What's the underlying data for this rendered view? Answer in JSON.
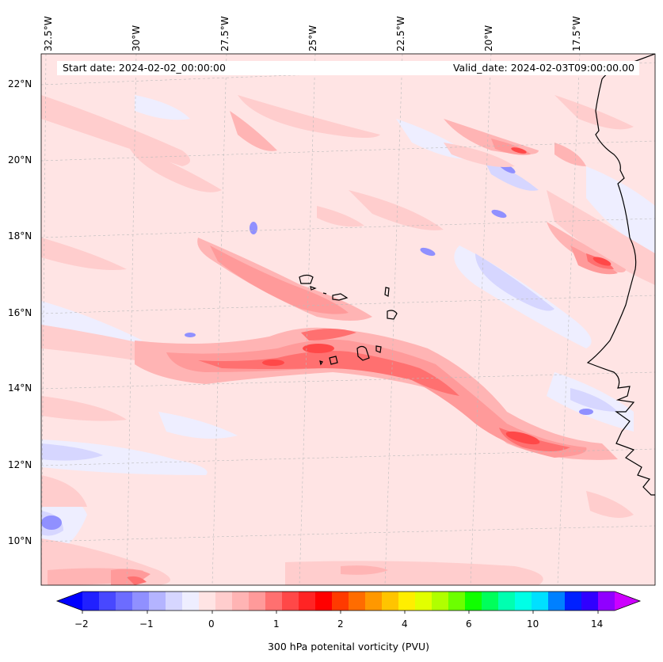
{
  "map": {
    "start_date_text": "Start date: 2024-02-02_00:00:00",
    "valid_date_text": "Valid_date: 2024-02-03T09:00:00.00",
    "lon_labels": [
      "32.5°W",
      "30°W",
      "27.5°W",
      "25°W",
      "22.5°W",
      "20°W",
      "17.5°W"
    ],
    "lat_labels": [
      "22°N",
      "20°N",
      "18°N",
      "16°N",
      "14°N",
      "12°N",
      "10°N"
    ],
    "islands": "Cape Verde Islands",
    "coast": "West African coastline (Mauritania, Senegal, Guinea-Bissau)"
  },
  "colorbar": {
    "title": "300 hPa potenital vorticity (PVU)",
    "tick_labels": [
      "−2",
      "−1",
      "0",
      "1",
      "2",
      "4",
      "6",
      "10",
      "14"
    ],
    "colors": [
      "#0000ff",
      "#2020ff",
      "#4848ff",
      "#6c6cff",
      "#9090ff",
      "#b4b4ff",
      "#d6d6ff",
      "#eeeeff",
      "#ffe4e4",
      "#ffcdcd",
      "#ffb4b4",
      "#ff9a9a",
      "#ff7070",
      "#ff4848",
      "#ff2424",
      "#ff0000",
      "#ff3a00",
      "#ff6c00",
      "#ff9800",
      "#ffc400",
      "#ffee00",
      "#e2ff00",
      "#b0ff00",
      "#6cff00",
      "#10ff00",
      "#00ff5a",
      "#00ffb0",
      "#00ffe6",
      "#00e0ff",
      "#0080ff",
      "#0020ff",
      "#3000ff",
      "#9000ff",
      "#cc00ff"
    ]
  }
}
